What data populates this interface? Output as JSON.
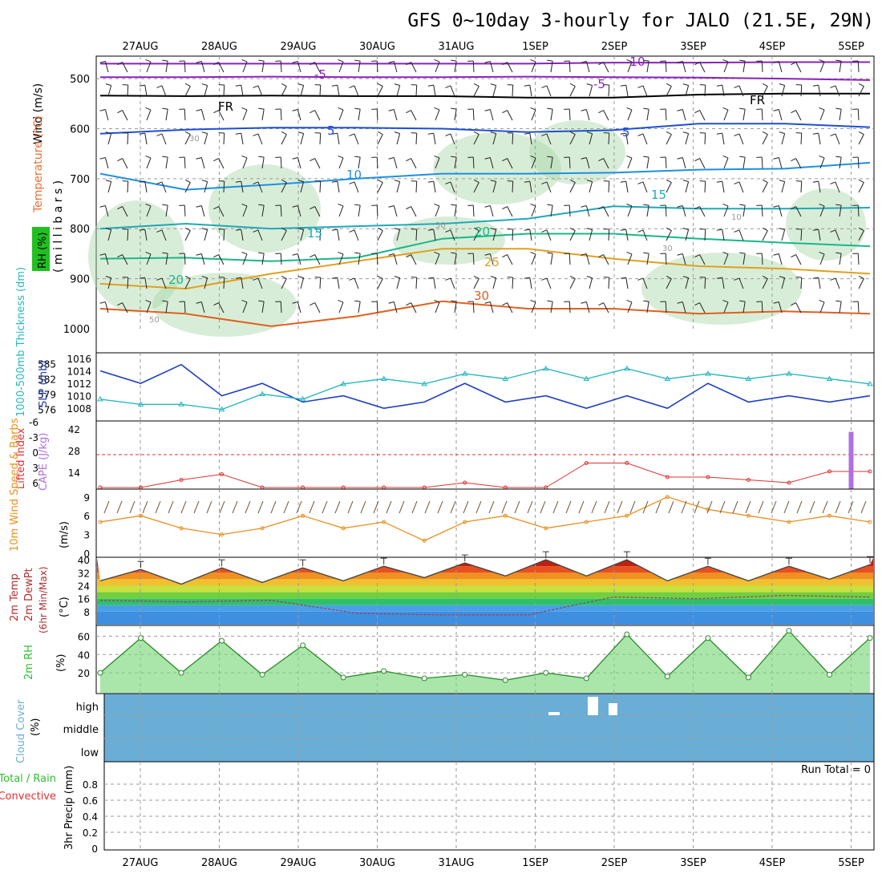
{
  "title": "GFS 0~10day 3-hourly for JALO (21.5E, 29N)",
  "date_labels": [
    "27AUG",
    "28AUG",
    "29AUG",
    "30AUG",
    "31AUG",
    "1SEP",
    "2SEP",
    "3SEP",
    "4SEP",
    "5SEP"
  ],
  "colors": {
    "temperature": "#e8703a",
    "wind_title": "#444444",
    "rh_box": "#20c020",
    "slp": "#1f3fbf",
    "thickness": "#2ab8c0",
    "lifted": "#e03030",
    "cape": "#b070e0",
    "wind10": "#e89020",
    "rh2m": "#30c030",
    "cloud": "#6aaed6",
    "precip_total": "#30c030",
    "precip_conv": "#e03030"
  },
  "chart_data": [
    {
      "type": "contour",
      "name": "upper-air",
      "ylabel": "(millibars)",
      "labels": {
        "wind": "Wind (m/s)",
        "temperature": "Temperature (°C)",
        "rh": "RH (%)",
        "millibars": "( m i l l i b a r s )"
      },
      "yticks": [
        500,
        600,
        700,
        800,
        900,
        1000
      ],
      "ylim": [
        455,
        1000
      ],
      "contour_labels": [
        "-10",
        "-5",
        "-5",
        "FR",
        "FR",
        "5",
        "5",
        "10",
        "15",
        "15",
        "20",
        "20",
        "25",
        "30",
        "30",
        "30",
        "30",
        "10",
        "50"
      ],
      "isotherms": [
        {
          "label": "-10",
          "p": [
            470,
            470,
            470,
            470,
            470,
            470,
            468,
            468,
            467,
            467
          ],
          "color": "#8a22b8"
        },
        {
          "label": "-5",
          "p": [
            497,
            497,
            496,
            497,
            497,
            496,
            497,
            498,
            500,
            503
          ],
          "color": "#8a22b8"
        },
        {
          "label": "FR",
          "p": [
            534,
            535,
            534,
            535,
            535,
            538,
            538,
            532,
            530,
            530
          ],
          "color": "#000000"
        },
        {
          "label": "5",
          "p": [
            610,
            602,
            598,
            598,
            600,
            607,
            603,
            590,
            590,
            597
          ],
          "color": "#1f4fd0"
        },
        {
          "label": "10",
          "p": [
            690,
            722,
            712,
            700,
            690,
            690,
            688,
            682,
            680,
            668
          ],
          "color": "#1f8fe0"
        },
        {
          "label": "15",
          "p": [
            800,
            790,
            800,
            795,
            790,
            780,
            755,
            760,
            760,
            758
          ],
          "color": "#20a8b8"
        },
        {
          "label": "20",
          "p": [
            860,
            858,
            865,
            858,
            820,
            810,
            810,
            820,
            828,
            835
          ],
          "color": "#18b888"
        },
        {
          "label": "25",
          "p": [
            910,
            920,
            890,
            865,
            840,
            840,
            860,
            875,
            880,
            890
          ],
          "color": "#e0a020"
        },
        {
          "label": "30",
          "p": [
            960,
            970,
            995,
            975,
            945,
            960,
            960,
            970,
            965,
            970
          ],
          "color": "#e06020"
        }
      ]
    },
    {
      "type": "line",
      "name": "thickness-slp",
      "labels": {
        "thickness": "1000-500mb Thickness (dm)",
        "slp": "SLP (mb)"
      },
      "y_left_ticks": [
        576,
        579,
        582,
        585
      ],
      "y_right_ticks": [
        1008,
        1010,
        1012,
        1014,
        1016
      ],
      "slp": [
        1014,
        1012,
        1015,
        1010,
        1012,
        1009,
        1010,
        1008,
        1009,
        1012,
        1009,
        1010,
        1008,
        1010,
        1008,
        1012,
        1009,
        1010,
        1009,
        1010
      ],
      "thickness": [
        578,
        577,
        577,
        576,
        579,
        578,
        581,
        582,
        581,
        583,
        582,
        584,
        582,
        584,
        582,
        583,
        582,
        583,
        582,
        581
      ]
    },
    {
      "type": "line",
      "name": "lifted-cape",
      "labels": {
        "lifted": "Lifted Index",
        "cape": "CAPE (J/kg)"
      },
      "y_left_ticks": [
        "-6",
        "-3",
        "0",
        "3",
        "6"
      ],
      "y_right_ticks": [
        14,
        28,
        42
      ],
      "lifted_index": [
        6,
        6,
        4.5,
        3.5,
        6,
        6,
        6,
        6,
        6,
        5,
        6,
        6,
        1.5,
        1.5,
        4,
        4,
        4.5,
        5,
        3,
        3
      ],
      "cape_bar_day": "5SEP",
      "cape_bar_value": 50
    },
    {
      "type": "line",
      "name": "wind10m",
      "ylabel": "(m/s)",
      "labels": {
        "speed": "10m Wind Speed & Barbs"
      },
      "yticks": [
        0,
        3,
        6,
        9
      ],
      "values": [
        5,
        6,
        4,
        3,
        4,
        6,
        4,
        5,
        2,
        5,
        6,
        4,
        5,
        6,
        9,
        7,
        6,
        5,
        6,
        5
      ]
    },
    {
      "type": "area",
      "name": "temp2m",
      "ylabel": "(°C)",
      "labels": {
        "temp": "2m Temp",
        "dewpt": "2m DewPt",
        "minmax": "(6hr Min/Max)"
      },
      "yticks": [
        8,
        16,
        24,
        32,
        40
      ],
      "temp_max": [
        34,
        35,
        35,
        36,
        38,
        40,
        40,
        36,
        36,
        37
      ],
      "temp_min": [
        27,
        25,
        26,
        27,
        29,
        30,
        30,
        27,
        27,
        28
      ],
      "dewpoint": [
        15,
        14,
        15,
        7,
        6,
        6,
        17,
        16,
        18,
        17
      ]
    },
    {
      "type": "area",
      "name": "rh2m",
      "ylabel": "(%)",
      "labels": {
        "rh": "2m RH"
      },
      "yticks": [
        20,
        40,
        60
      ],
      "values": [
        20,
        58,
        20,
        55,
        18,
        50,
        15,
        22,
        14,
        18,
        12,
        20,
        14,
        62,
        16,
        58,
        15,
        66,
        18,
        58
      ]
    },
    {
      "type": "bar",
      "name": "cloud-cover",
      "ylabel": "(%)",
      "labels": {
        "cloud": "Cloud Cover"
      },
      "levels": [
        "high",
        "middle",
        "low"
      ]
    },
    {
      "type": "bar",
      "name": "precip",
      "ylabel": "3hr Precip (mm)",
      "labels": {
        "total": "Total / Rain",
        "convective": "Convective",
        "run_total": "Run Total = 0"
      },
      "yticks": [
        "0",
        "0.2",
        "0.4",
        "0.6",
        "0.8"
      ],
      "ylim": [
        0,
        1
      ]
    }
  ]
}
